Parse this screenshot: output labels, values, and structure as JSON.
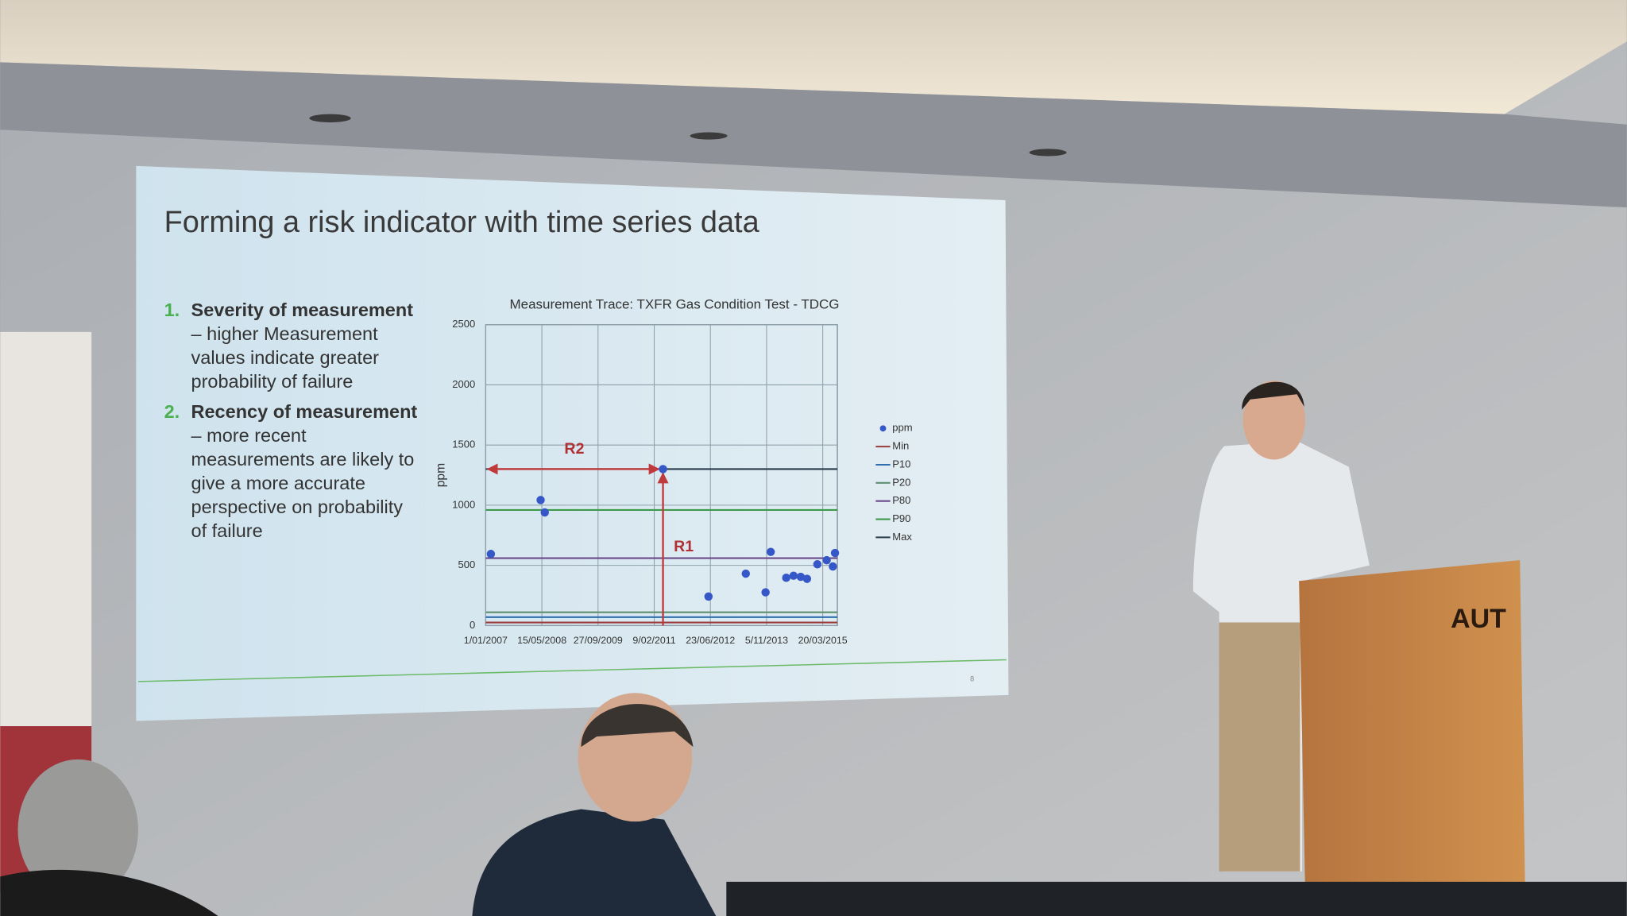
{
  "slide": {
    "title": "Forming a risk indicator with time series data",
    "points": [
      {
        "number": "1.",
        "heading": "Severity of measurement",
        "lines": [
          "– higher Measurement",
          "values indicate greater",
          "probability of failure"
        ]
      },
      {
        "number": "2.",
        "heading": "Recency of measurement",
        "lines": [
          "– more recent",
          "measurements are likely to",
          "give a more accurate",
          "perspective on probability",
          "of failure"
        ]
      }
    ],
    "page_number": "8"
  },
  "podium": {
    "logo": "AUT"
  },
  "chart_data": {
    "type": "scatter",
    "title": "Measurement Trace: TXFR Gas Condition Test - TDCG",
    "y_label": "ppm",
    "xlim": [
      0,
      3130
    ],
    "xticks": [
      {
        "value": 0,
        "label": "1/01/2007"
      },
      {
        "value": 500,
        "label": "15/05/2008"
      },
      {
        "value": 1000,
        "label": "27/09/2009"
      },
      {
        "value": 1500,
        "label": "9/02/2011"
      },
      {
        "value": 2000,
        "label": "23/06/2012"
      },
      {
        "value": 2500,
        "label": "5/11/2013"
      },
      {
        "value": 3000,
        "label": "20/03/2015"
      }
    ],
    "ylim": [
      0,
      2500
    ],
    "yticks": [
      0,
      500,
      1000,
      1500,
      2000,
      2500
    ],
    "grid": true,
    "series": [
      {
        "name": "ppm",
        "color": "#3557c8",
        "x": [
          46,
          489,
          526,
          1578,
          1983,
          2315,
          2491,
          2537,
          2675,
          2740,
          2804,
          2860,
          2952,
          3035,
          3090,
          3109
        ],
        "values": [
          595,
          1043,
          940,
          1300,
          241,
          431,
          276,
          612,
          397,
          414,
          405,
          388,
          509,
          543,
          491,
          603
        ]
      },
      {
        "name": "Min",
        "color": "#9a3b3b",
        "value": 25
      },
      {
        "name": "P10",
        "color": "#2f6fb0",
        "value": 70
      },
      {
        "name": "P20",
        "color": "#5f8f6f",
        "value": 110
      },
      {
        "name": "P80",
        "color": "#6b4a8a",
        "value": 560
      },
      {
        "name": "P90",
        "color": "#3e9a4a",
        "value": 960
      },
      {
        "name": "Max",
        "color": "#2a3a4a",
        "value": 1300
      }
    ],
    "annotations": [
      {
        "text": "R2"
      },
      {
        "text": "R1"
      }
    ],
    "legend": "right"
  }
}
